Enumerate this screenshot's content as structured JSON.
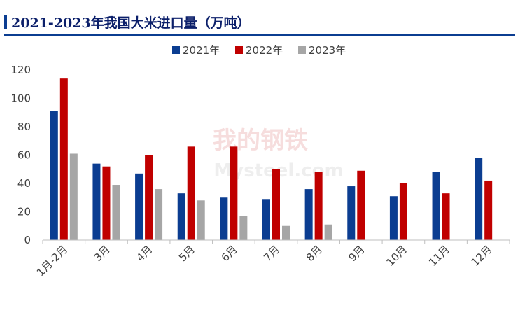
{
  "title": "2021-2023年我国大米进口量（万吨）",
  "watermark": {
    "cn": "我的钢铁",
    "en": "Mysteel.com"
  },
  "chart_data": {
    "type": "bar",
    "title": "2021-2023年我国大米进口量（万吨）",
    "categories": [
      "1月-2月",
      "3月",
      "4月",
      "5月",
      "6月",
      "7月",
      "8月",
      "9月",
      "10月",
      "11月",
      "12月"
    ],
    "series": [
      {
        "name": "2021年",
        "color": "#0b3d91",
        "values": [
          91,
          54,
          47,
          33,
          30,
          29,
          36,
          38,
          31,
          48,
          58
        ]
      },
      {
        "name": "2022年",
        "color": "#c00000",
        "values": [
          114,
          52,
          60,
          66,
          66,
          50,
          48,
          49,
          40,
          33,
          42
        ]
      },
      {
        "name": "2023年",
        "color": "#a6a6a6",
        "values": [
          61,
          39,
          36,
          28,
          17,
          10,
          11,
          null,
          null,
          null,
          null
        ]
      }
    ],
    "yticks": [
      "0",
      "20",
      "40",
      "60",
      "80",
      "100",
      "120"
    ],
    "ylim": [
      0,
      120
    ],
    "legend_position": "top-center",
    "grid": false
  }
}
